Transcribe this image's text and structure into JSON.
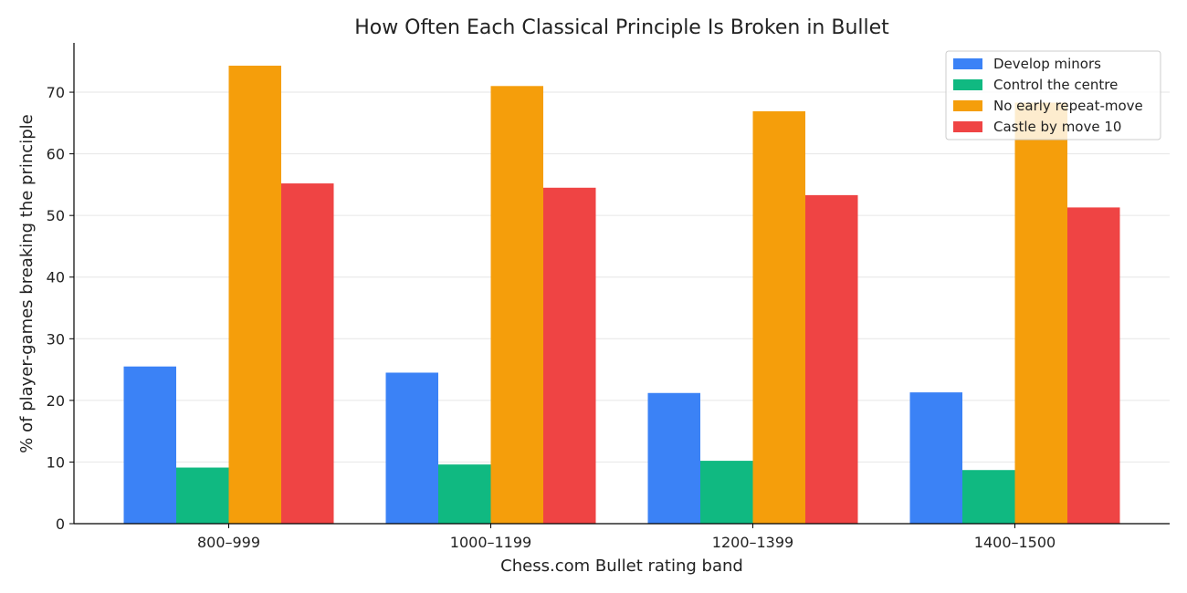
{
  "chart_data": {
    "type": "bar",
    "title": "How Often Each Classical Principle Is Broken in Bullet",
    "xlabel": "Chess.com Bullet rating band",
    "ylabel": "% of player-games breaking the principle",
    "categories": [
      "800–999",
      "1000–1199",
      "1200–1399",
      "1400–1500"
    ],
    "ylim": [
      0,
      78
    ],
    "yticks": [
      0,
      10,
      20,
      30,
      40,
      50,
      60,
      70
    ],
    "grid": true,
    "legend_position": "top-right",
    "series": [
      {
        "name": "Develop minors",
        "color": "#3b82f6",
        "values": [
          25.5,
          24.5,
          21.2,
          21.3
        ]
      },
      {
        "name": "Control the centre",
        "color": "#10b981",
        "values": [
          9.1,
          9.6,
          10.2,
          8.7
        ]
      },
      {
        "name": "No early repeat-move",
        "color": "#f59e0b",
        "values": [
          74.3,
          71.0,
          66.9,
          68.3
        ]
      },
      {
        "name": "Castle by move 10",
        "color": "#ef4444",
        "values": [
          55.2,
          54.5,
          53.3,
          51.3
        ]
      }
    ]
  }
}
